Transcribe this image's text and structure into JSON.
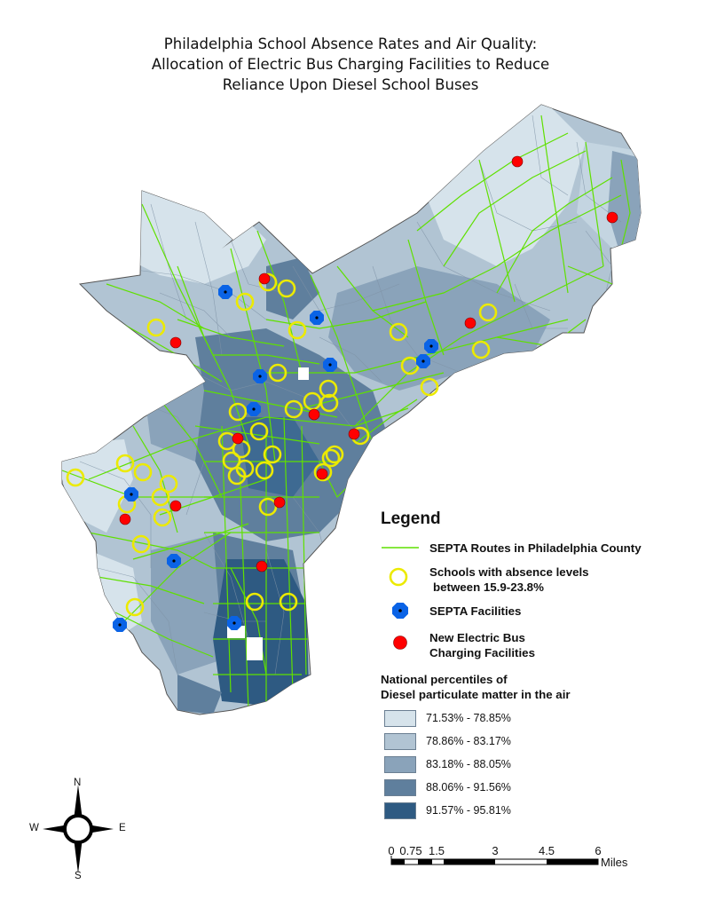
{
  "title": {
    "line1": "Philadelphia School Absence Rates and Air Quality:",
    "line2": "Allocation of Electric Bus Charging Facilities to Reduce",
    "line3": "Reliance Upon Diesel School Buses"
  },
  "colors": {
    "class1": "#d6e3eb",
    "class2": "#b1c4d3",
    "class3": "#8aa3ba",
    "class4": "#5f7f9d",
    "class5": "#2e5a82",
    "route": "#5fe000",
    "school": "#ecea00",
    "septa": "#0a63e6",
    "charging": "#ff0000"
  },
  "legend": {
    "title": "Legend",
    "routes_label": "SEPTA Routes in Philadelphia County",
    "schools_label_1": "Schools with absence levels",
    "schools_label_2": "between 15.9-23.8%",
    "septa_label": "SEPTA Facilities",
    "charging_label_1": "New Electric Bus",
    "charging_label_2": "Charging Facilities",
    "percentile_title_1": "National percentiles of",
    "percentile_title_2": "Diesel particulate matter in the air",
    "classes": [
      "71.53% - 78.85%",
      "78.86% - 83.17%",
      "83.18% - 88.05%",
      "88.06% - 91.56%",
      "91.57% - 95.81%"
    ]
  },
  "scalebar": {
    "ticks": [
      "0",
      "0.75",
      "1.5",
      "3",
      "4.5",
      "6"
    ],
    "unit": "Miles"
  },
  "compass": {
    "n": "N",
    "s": "S",
    "e": "E",
    "w": "W"
  }
}
